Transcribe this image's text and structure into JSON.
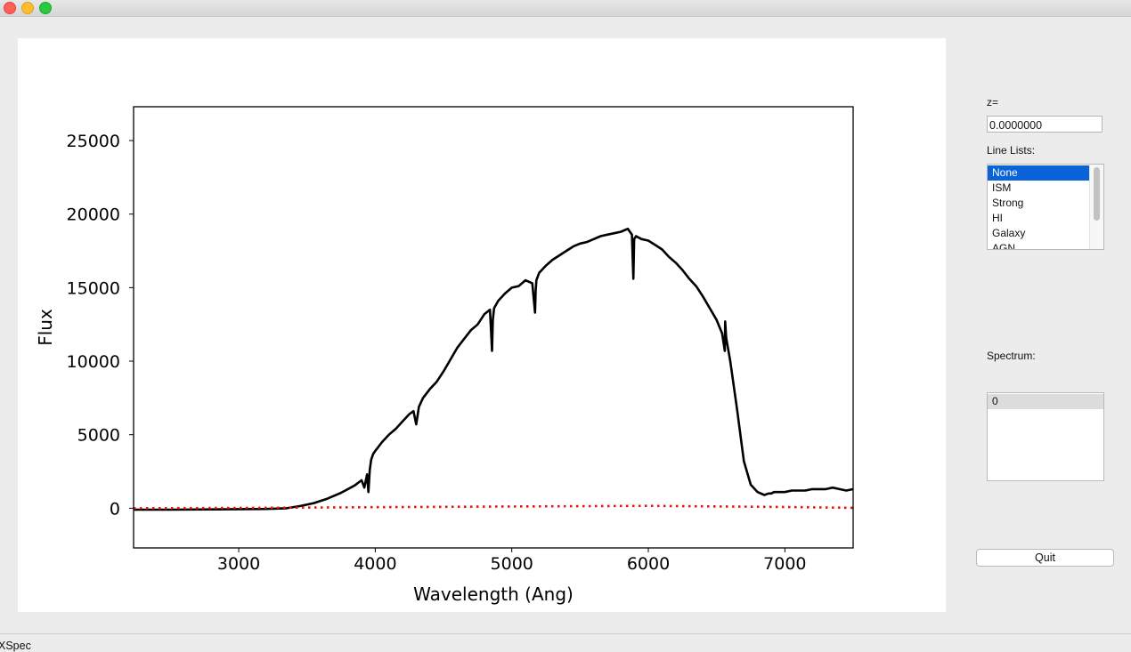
{
  "window": {
    "app_name": "XSpec"
  },
  "controls": {
    "z_label": "z=",
    "z_value": "0.0000000",
    "line_lists_label": "Line Lists:",
    "line_lists": [
      "None",
      "ISM",
      "Strong",
      "HI",
      "Galaxy",
      "AGN"
    ],
    "selected_line_list": "None",
    "spectrum_label": "Spectrum:",
    "spectra": [
      "0"
    ],
    "quit_label": "Quit"
  },
  "colors": {
    "spectrum": "#000000",
    "continuum": "#e8140c",
    "selection": "#0a63d8"
  },
  "chart_data": {
    "type": "line",
    "xlabel": "Wavelength (Ang)",
    "ylabel": "Flux",
    "xlim": [
      2230,
      7500
    ],
    "ylim": [
      -2700,
      27300
    ],
    "xticks": [
      3000,
      4000,
      5000,
      6000,
      7000
    ],
    "yticks": [
      0,
      5000,
      10000,
      15000,
      20000,
      25000
    ],
    "grid": false,
    "series": [
      {
        "style": "solid",
        "color": "#000000",
        "x": [
          2230,
          2500,
          2800,
          3000,
          3200,
          3350,
          3450,
          3550,
          3650,
          3750,
          3850,
          3900,
          3920,
          3940,
          3950,
          3960,
          3970,
          3985,
          4000,
          4050,
          4100,
          4150,
          4200,
          4250,
          4280,
          4300,
          4320,
          4350,
          4400,
          4450,
          4500,
          4550,
          4600,
          4650,
          4700,
          4750,
          4800,
          4840,
          4855,
          4861,
          4870,
          4900,
          4950,
          5000,
          5050,
          5100,
          5150,
          5170,
          5175,
          5180,
          5200,
          5250,
          5300,
          5350,
          5400,
          5450,
          5500,
          5550,
          5600,
          5650,
          5700,
          5750,
          5800,
          5850,
          5880,
          5890,
          5896,
          5910,
          5950,
          6000,
          6050,
          6100,
          6150,
          6200,
          6250,
          6300,
          6350,
          6400,
          6450,
          6500,
          6540,
          6560,
          6563,
          6570,
          6600,
          6650,
          6700,
          6750,
          6800,
          6850,
          6880,
          6900,
          6920,
          6950,
          7000,
          7050,
          7100,
          7150,
          7200,
          7250,
          7300,
          7350,
          7400,
          7450,
          7500
        ],
        "y": [
          -100,
          -100,
          -80,
          -60,
          -50,
          0,
          150,
          350,
          650,
          1050,
          1550,
          1900,
          1400,
          2300,
          1100,
          2600,
          3300,
          3700,
          3900,
          4500,
          5000,
          5400,
          5900,
          6400,
          6600,
          5700,
          6900,
          7500,
          8100,
          8600,
          9300,
          10100,
          10900,
          11500,
          12100,
          12500,
          13200,
          13500,
          10700,
          12800,
          13600,
          14100,
          14600,
          15000,
          15100,
          15500,
          15300,
          13300,
          14800,
          15500,
          16000,
          16500,
          16900,
          17200,
          17500,
          17800,
          18000,
          18100,
          18300,
          18500,
          18600,
          18700,
          18800,
          19000,
          18600,
          15600,
          18300,
          18500,
          18300,
          18200,
          17900,
          17600,
          17100,
          16700,
          16200,
          15600,
          15100,
          14400,
          13600,
          12800,
          11900,
          10700,
          12700,
          11600,
          10000,
          6700,
          3200,
          1600,
          1100,
          900,
          1000,
          1000,
          1100,
          1100,
          1100,
          1200,
          1200,
          1200,
          1300,
          1300,
          1300,
          1400,
          1300,
          1200,
          1300
        ]
      },
      {
        "style": "dotted",
        "color": "#e8140c",
        "x": [
          2230,
          3000,
          4000,
          5000,
          6000,
          7000,
          7500
        ],
        "y": [
          0,
          20,
          70,
          120,
          160,
          80,
          30
        ]
      }
    ]
  }
}
